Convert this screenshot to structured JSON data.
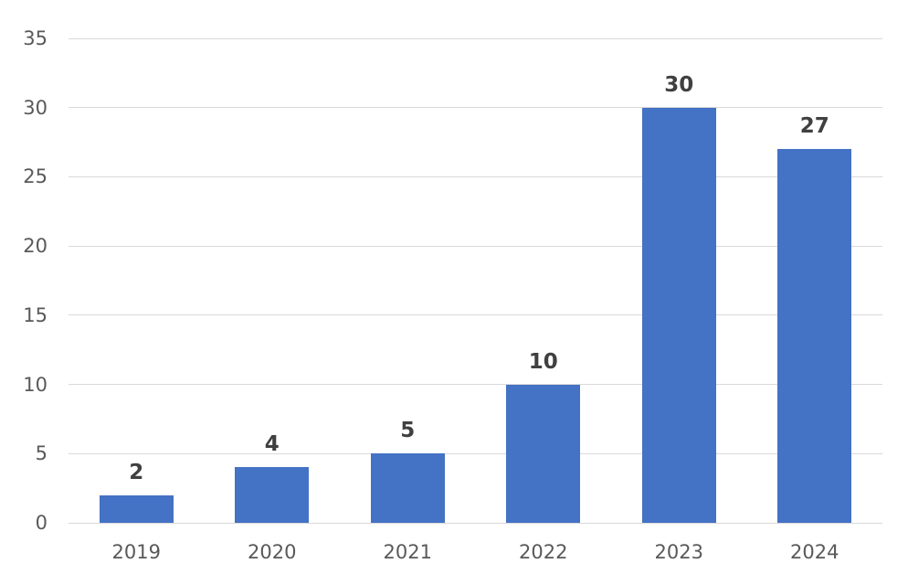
{
  "chart_data": {
    "type": "bar",
    "title": "",
    "xlabel": "",
    "ylabel": "",
    "categories": [
      "2019",
      "2020",
      "2021",
      "2022",
      "2023",
      "2024"
    ],
    "values": [
      2,
      4,
      5,
      10,
      30,
      27
    ],
    "data_labels": [
      "2",
      "4",
      "5",
      "10",
      "30",
      "27"
    ],
    "ylim": [
      0,
      35
    ],
    "y_ticks": [
      0,
      5,
      10,
      15,
      20,
      25,
      30,
      35
    ],
    "grid": "horizontal",
    "legend": "none",
    "colors": {
      "bar": "#4472C4",
      "gridline": "#D9D9D9",
      "axis_text": "#595959",
      "data_label": "#404040",
      "background": "#FFFFFF"
    }
  }
}
